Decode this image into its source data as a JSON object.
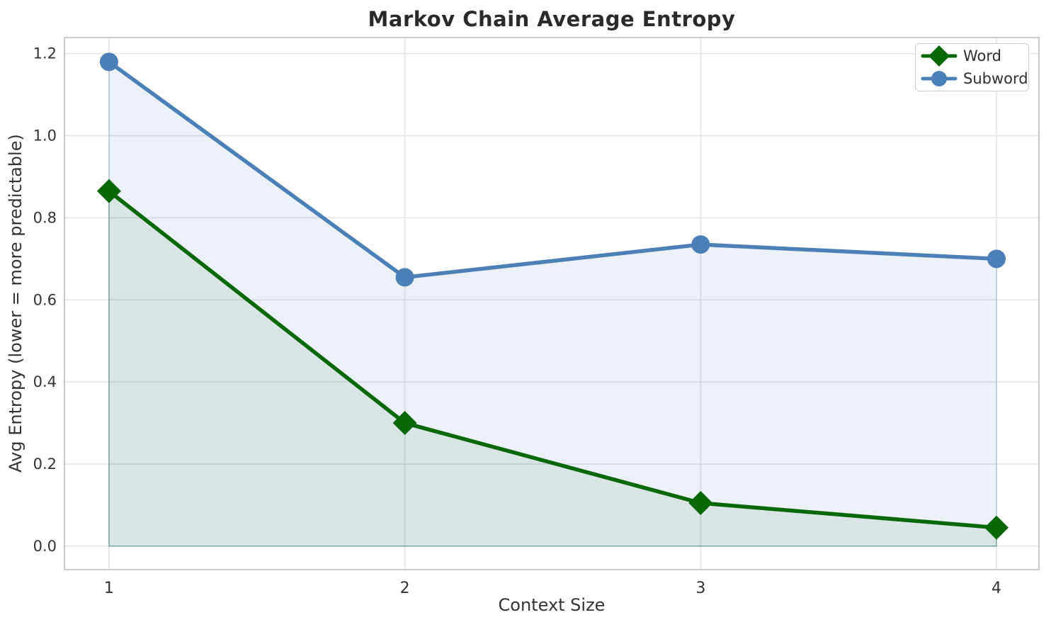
{
  "title": "Markov Chain Average Entropy",
  "chart_data": {
    "type": "line",
    "title": "Markov Chain Average Entropy",
    "xlabel": "Context Size",
    "ylabel": "Avg Entropy (lower = more predictable)",
    "x": [
      1,
      2,
      3,
      4
    ],
    "series": [
      {
        "name": "Word",
        "values": [
          0.865,
          0.3,
          0.105,
          0.045
        ],
        "color": "#086808",
        "marker": "diamond",
        "area_fill": "rgba(8,104,8,0.085)",
        "area_edge": "rgba(8,104,8,0.30)"
      },
      {
        "name": "Subword",
        "values": [
          1.18,
          0.655,
          0.735,
          0.7
        ],
        "color": "#4A80B6",
        "marker": "circle",
        "area_fill": "rgba(70,128,182,0.11)",
        "area_edge": "rgba(70,128,182,0.30)"
      }
    ],
    "x_ticks": [
      "1",
      "2",
      "3",
      "4"
    ],
    "y_ticks": [
      "0.0",
      "0.2",
      "0.4",
      "0.6",
      "0.8",
      "1.0",
      "1.2"
    ],
    "xlim": [
      0.847,
      4.146
    ],
    "ylim": [
      -0.059,
      1.241
    ],
    "grid": true,
    "grid_color": "#e4e4e4",
    "spine_color": "#c9c9c9",
    "tick_color": "#333333",
    "legend_position": "upper right",
    "line_width": 5.5,
    "marker_size": 13
  }
}
